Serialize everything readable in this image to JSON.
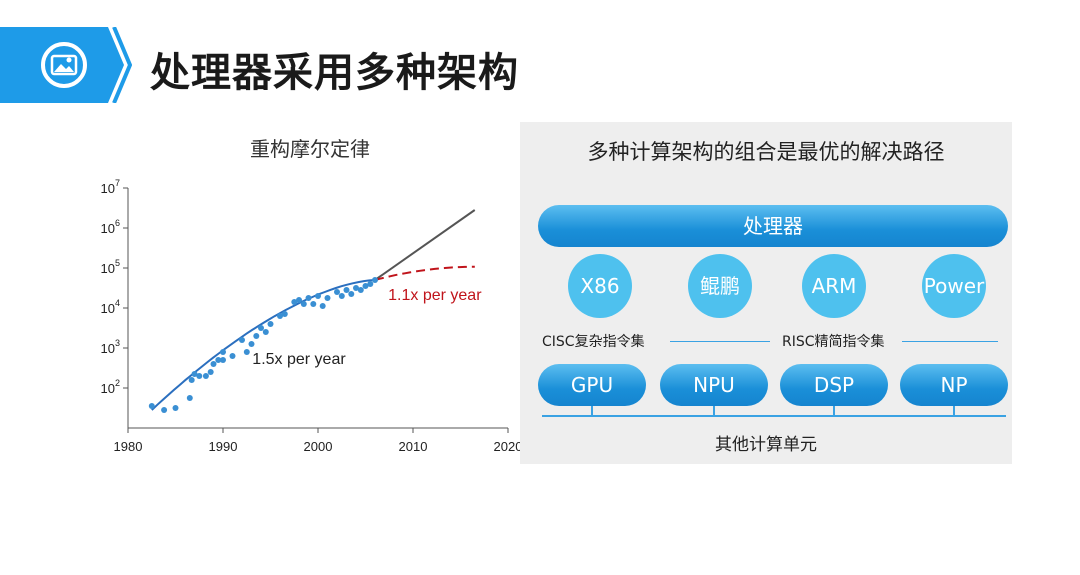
{
  "header": {
    "title": "处理器采用多种架构",
    "icon": "image-icon",
    "accent": "#1e9be8"
  },
  "chart_data": {
    "type": "scatter",
    "title": "重构摩尔定律",
    "xlabel": "",
    "ylabel": "",
    "xlim": [
      1980,
      2020
    ],
    "ylim_log10": [
      1,
      7
    ],
    "x_ticks": [
      "1980",
      "1990",
      "2000",
      "2010",
      "2020"
    ],
    "y_ticks": [
      {
        "base": "10",
        "exp": "7",
        "v": 7
      },
      {
        "base": "10",
        "exp": "6",
        "v": 6
      },
      {
        "base": "10",
        "exp": "5",
        "v": 5
      },
      {
        "base": "10",
        "exp": "4",
        "v": 4
      },
      {
        "base": "10",
        "exp": "3",
        "v": 3
      },
      {
        "base": "10",
        "exp": "2",
        "v": 2
      }
    ],
    "points": [
      [
        1982.5,
        1.55
      ],
      [
        1983.8,
        1.45
      ],
      [
        1985,
        1.5
      ],
      [
        1986.5,
        1.75
      ],
      [
        1986.7,
        2.2
      ],
      [
        1987,
        2.35
      ],
      [
        1987.5,
        2.3
      ],
      [
        1988.2,
        2.3
      ],
      [
        1988.7,
        2.4
      ],
      [
        1989,
        2.6
      ],
      [
        1989.5,
        2.7
      ],
      [
        1990,
        2.7
      ],
      [
        1990,
        2.9
      ],
      [
        1991,
        2.8
      ],
      [
        1992,
        3.2
      ],
      [
        1992.5,
        2.9
      ],
      [
        1993,
        3.1
      ],
      [
        1993.5,
        3.3
      ],
      [
        1994,
        3.5
      ],
      [
        1994.5,
        3.4
      ],
      [
        1995,
        3.6
      ],
      [
        1996,
        3.8
      ],
      [
        1996.5,
        3.85
      ],
      [
        1997.5,
        4.15
      ],
      [
        1998,
        4.2
      ],
      [
        1998.5,
        4.1
      ],
      [
        1999,
        4.25
      ],
      [
        1999.5,
        4.1
      ],
      [
        2000,
        4.3
      ],
      [
        2000.5,
        4.05
      ],
      [
        2001,
        4.25
      ],
      [
        2002,
        4.4
      ],
      [
        2002.5,
        4.3
      ],
      [
        2003,
        4.45
      ],
      [
        2003.5,
        4.35
      ],
      [
        2004,
        4.5
      ],
      [
        2004.5,
        4.45
      ],
      [
        2005,
        4.55
      ],
      [
        2005.5,
        4.6
      ],
      [
        2006,
        4.7
      ]
    ],
    "annotations": [
      {
        "text": "1.5x per year",
        "color": "#222222",
        "x": 1998,
        "y": 2.6
      },
      {
        "text": "1.1x per year",
        "color": "#c0141b",
        "x": 2012.3,
        "y": 4.2
      }
    ],
    "colors": {
      "points": "#3a8fd3",
      "fit": "#2b6fbf",
      "projection": "#555555",
      "projection_slow": "#c0141b"
    }
  },
  "panel": {
    "title": "多种计算架构的组合是最优的解决路径",
    "processor": "处理器",
    "isa": [
      {
        "label": "X86",
        "pos": 0
      },
      {
        "label": "鲲鹏",
        "pos": 1
      },
      {
        "label": "ARM",
        "pos": 2
      },
      {
        "label": "Power",
        "pos": 3
      }
    ],
    "cisc_label": "CISC复杂指令集",
    "risc_label": "RISC精简指令集",
    "units": [
      {
        "label": "GPU",
        "pos": 0
      },
      {
        "label": "NPU",
        "pos": 1
      },
      {
        "label": "DSP",
        "pos": 2
      },
      {
        "label": "NP",
        "pos": 3
      }
    ],
    "other_units": "其他计算单元"
  }
}
